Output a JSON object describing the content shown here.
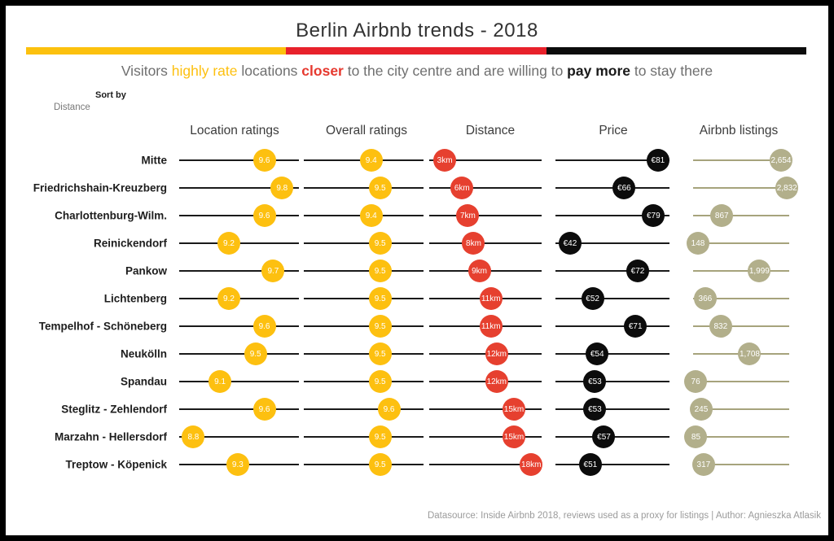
{
  "title": "Berlin Airbnb trends - 2018",
  "subtitle_parts": [
    {
      "text": "Visitors ",
      "style": "plain"
    },
    {
      "text": "highly rate",
      "style": "gold"
    },
    {
      "text": " locations ",
      "style": "plain"
    },
    {
      "text": "closer",
      "style": "red"
    },
    {
      "text": " to the city centre and are willing to ",
      "style": "plain"
    },
    {
      "text": "pay more",
      "style": "black"
    },
    {
      "text": " to stay there",
      "style": "plain"
    }
  ],
  "sort_by": {
    "label": "Sort by",
    "value": "Distance"
  },
  "column_headers": [
    "Location ratings",
    "Overall ratings",
    "Distance",
    "Price",
    "Airbnb listings"
  ],
  "footer": "Datasource: Inside Airbnb 2018, reviews used as a proxy for listings | Author: Agnieszka Atlasik",
  "colors": {
    "flag_gold": "#fcc10e",
    "flag_red": "#e8212b",
    "flag_black": "#0c0c0c",
    "dot_gold": "#fdc010",
    "dot_red": "#e6402f",
    "dot_black": "#0c0c0c",
    "dot_olive": "#b2af8b",
    "axis_black": "#1a1a1a",
    "axis_olive": "#a6a37c"
  },
  "chart_data": {
    "type": "dot-plot-table",
    "title": "Berlin Airbnb trends - 2018",
    "sorted_by": "Distance",
    "columns": [
      {
        "key": "location",
        "label": "Location ratings",
        "unit": "rating"
      },
      {
        "key": "overall",
        "label": "Overall ratings",
        "unit": "rating"
      },
      {
        "key": "distance",
        "label": "Distance",
        "unit": "km"
      },
      {
        "key": "price",
        "label": "Price",
        "unit": "EUR"
      },
      {
        "key": "listings",
        "label": "Airbnb listings",
        "unit": "count"
      }
    ],
    "axis_ranges": {
      "ratings": [
        8.64,
        9.99
      ],
      "distance_km": [
        0.3,
        19.8
      ],
      "price_eur": [
        35.5,
        86.1
      ],
      "listings": [
        0,
        2900
      ]
    },
    "rows": [
      {
        "district": "Mitte",
        "location_rating": 9.6,
        "overall_rating": 9.4,
        "distance_km": 3,
        "price_eur": 81,
        "listings": 2654,
        "labels": {
          "location": "9.6",
          "overall": "9.4",
          "distance": "3km",
          "price": "€81",
          "listings": "2,654"
        }
      },
      {
        "district": "Friedrichshain-Kreuzberg",
        "location_rating": 9.8,
        "overall_rating": 9.5,
        "distance_km": 6,
        "price_eur": 66,
        "listings": 2832,
        "labels": {
          "location": "9.8",
          "overall": "9.5",
          "distance": "6km",
          "price": "€66",
          "listings": "2,832"
        }
      },
      {
        "district": "Charlottenburg-Wilm.",
        "location_rating": 9.6,
        "overall_rating": 9.4,
        "distance_km": 7,
        "price_eur": 79,
        "listings": 867,
        "labels": {
          "location": "9.6",
          "overall": "9.4",
          "distance": "7km",
          "price": "€79",
          "listings": "867"
        }
      },
      {
        "district": "Reinickendorf",
        "location_rating": 9.2,
        "overall_rating": 9.5,
        "distance_km": 8,
        "price_eur": 42,
        "listings": 148,
        "labels": {
          "location": "9.2",
          "overall": "9.5",
          "distance": "8km",
          "price": "€42",
          "listings": "148"
        }
      },
      {
        "district": "Pankow",
        "location_rating": 9.7,
        "overall_rating": 9.5,
        "distance_km": 9,
        "price_eur": 72,
        "listings": 1999,
        "labels": {
          "location": "9.7",
          "overall": "9.5",
          "distance": "9km",
          "price": "€72",
          "listings": "1,999"
        }
      },
      {
        "district": "Lichtenberg",
        "location_rating": 9.2,
        "overall_rating": 9.5,
        "distance_km": 11,
        "price_eur": 52,
        "listings": 366,
        "labels": {
          "location": "9.2",
          "overall": "9.5",
          "distance": "11km",
          "price": "€52",
          "listings": "366"
        }
      },
      {
        "district": "Tempelhof - Schöneberg",
        "location_rating": 9.6,
        "overall_rating": 9.5,
        "distance_km": 11,
        "price_eur": 71,
        "listings": 832,
        "labels": {
          "location": "9.6",
          "overall": "9.5",
          "distance": "11km",
          "price": "€71",
          "listings": "832"
        }
      },
      {
        "district": "Neukölln",
        "location_rating": 9.5,
        "overall_rating": 9.5,
        "distance_km": 12,
        "price_eur": 54,
        "listings": 1708,
        "labels": {
          "location": "9.5",
          "overall": "9.5",
          "distance": "12km",
          "price": "€54",
          "listings": "1,708"
        }
      },
      {
        "district": "Spandau",
        "location_rating": 9.1,
        "overall_rating": 9.5,
        "distance_km": 12,
        "price_eur": 53,
        "listings": 76,
        "labels": {
          "location": "9.1",
          "overall": "9.5",
          "distance": "12km",
          "price": "€53",
          "listings": "76"
        }
      },
      {
        "district": "Steglitz - Zehlendorf",
        "location_rating": 9.6,
        "overall_rating": 9.6,
        "distance_km": 15,
        "price_eur": 53,
        "listings": 245,
        "labels": {
          "location": "9.6",
          "overall": "9.6",
          "distance": "15km",
          "price": "€53",
          "listings": "245"
        }
      },
      {
        "district": "Marzahn - Hellersdorf",
        "location_rating": 8.8,
        "overall_rating": 9.5,
        "distance_km": 15,
        "price_eur": 57,
        "listings": 85,
        "labels": {
          "location": "8.8",
          "overall": "9.5",
          "distance": "15km",
          "price": "€57",
          "listings": "85"
        }
      },
      {
        "district": "Treptow - Köpenick",
        "location_rating": 9.3,
        "overall_rating": 9.5,
        "distance_km": 18,
        "price_eur": 51,
        "listings": 317,
        "labels": {
          "location": "9.3",
          "overall": "9.5",
          "distance": "18km",
          "price": "€51",
          "listings": "317"
        }
      }
    ]
  }
}
